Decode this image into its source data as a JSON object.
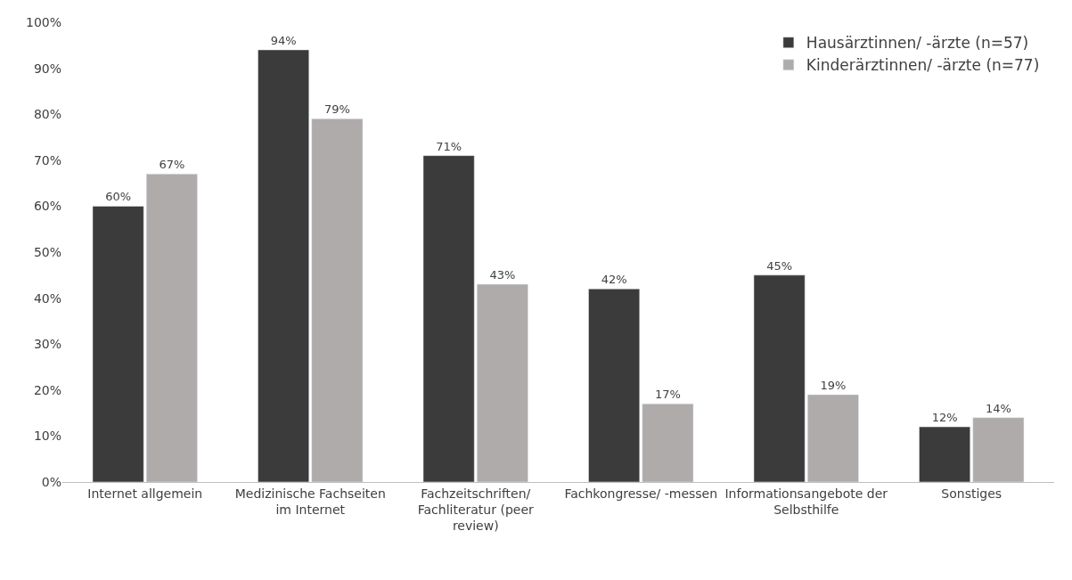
{
  "chart_data": {
    "type": "bar",
    "categories": [
      "Internet allgemein",
      "Medizinische Fachseiten im Internet",
      "Fachzeitschriften/ Fachliteratur (peer review)",
      "Fachkongresse/ -messen",
      "Informationsangebote der Selbsthilfe",
      "Sonstiges"
    ],
    "series": [
      {
        "name": "Hausärztinnen/ -ärzte (n=57)",
        "color": "#3b3b3b",
        "values": [
          60,
          94,
          71,
          42,
          45,
          12
        ],
        "value_labels": [
          "60%",
          "94%",
          "71%",
          "42%",
          "45%",
          "12%"
        ]
      },
      {
        "name": "Kinderärztinnen/ -ärzte (n=77)",
        "color": "#afabab",
        "values": [
          67,
          79,
          43,
          17,
          19,
          14
        ],
        "value_labels": [
          "67%",
          "79%",
          "43%",
          "17%",
          "19%",
          "14%"
        ]
      }
    ],
    "ylim": [
      0,
      100
    ],
    "yticks": [
      {
        "value": 0,
        "label": "0%"
      },
      {
        "value": 10,
        "label": "10%"
      },
      {
        "value": 20,
        "label": "20%"
      },
      {
        "value": 30,
        "label": "30%"
      },
      {
        "value": 40,
        "label": "40%"
      },
      {
        "value": 50,
        "label": "50%"
      },
      {
        "value": 60,
        "label": "60%"
      },
      {
        "value": 70,
        "label": "70%"
      },
      {
        "value": 80,
        "label": "80%"
      },
      {
        "value": 90,
        "label": "90%"
      },
      {
        "value": 100,
        "label": "100%"
      }
    ],
    "grid": false,
    "legend": "top right"
  }
}
